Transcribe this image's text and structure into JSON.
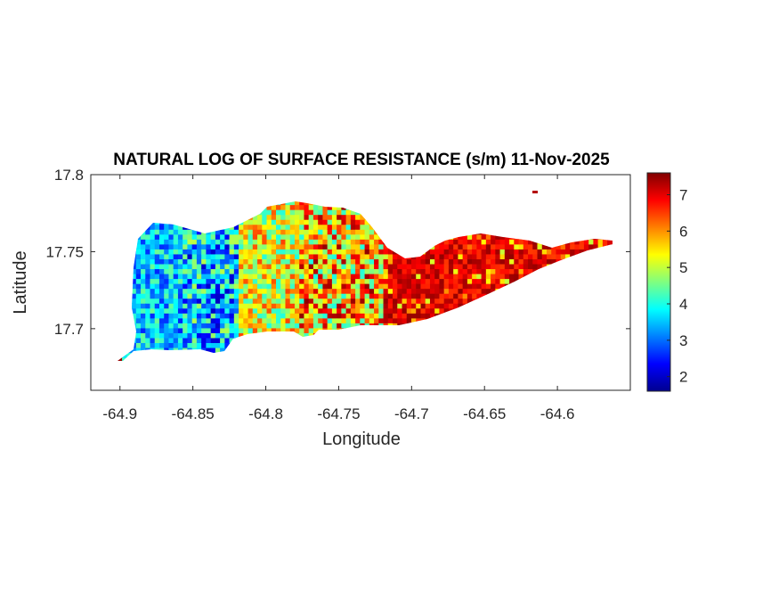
{
  "chart_data": {
    "type": "heatmap",
    "title": "NATURAL LOG OF SURFACE RESISTANCE (s/m) 11-Nov-2025",
    "xlabel": "Longitude",
    "ylabel": "Latitude",
    "xlim": [
      -64.92,
      -64.55
    ],
    "ylim": [
      17.66,
      17.8
    ],
    "x_ticks": [
      -64.9,
      -64.85,
      -64.8,
      -64.75,
      -64.7,
      -64.65,
      -64.6
    ],
    "x_tick_labels": [
      "-64.9",
      "-64.85",
      "-64.8",
      "-64.75",
      "-64.7",
      "-64.65",
      "-64.6"
    ],
    "y_ticks": [
      17.7,
      17.75,
      17.8
    ],
    "y_tick_labels": [
      "17.7",
      "17.75",
      "17.8"
    ],
    "colorbar": {
      "colormap": "jet",
      "range": [
        1.6,
        7.6
      ],
      "ticks": [
        2,
        3,
        4,
        5,
        6,
        7
      ],
      "tick_labels": [
        "2",
        "3",
        "4",
        "5",
        "6",
        "7"
      ]
    },
    "grid": false,
    "regions": [
      {
        "lon_range": [
          -64.9,
          -64.86
        ],
        "value_range": [
          2.5,
          4.5
        ]
      },
      {
        "lon_range": [
          -64.86,
          -64.82
        ],
        "value_range": [
          2.0,
          5.0
        ]
      },
      {
        "lon_range": [
          -64.82,
          -64.78
        ],
        "value_range": [
          4.0,
          6.5
        ]
      },
      {
        "lon_range": [
          -64.78,
          -64.72
        ],
        "value_range": [
          4.0,
          7.5
        ]
      },
      {
        "lon_range": [
          -64.72,
          -64.56
        ],
        "value_range": [
          6.5,
          7.5
        ]
      }
    ]
  }
}
